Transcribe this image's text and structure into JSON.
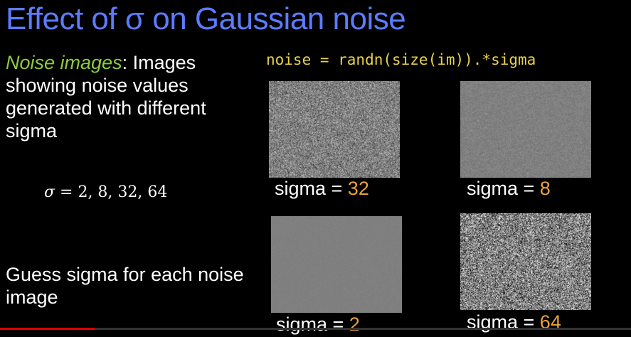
{
  "slide": {
    "title": "Effect of σ on Gaussian noise",
    "desc_highlight": "Noise images",
    "desc_rest": ": Images showing noise values generated with different sigma",
    "formula_symbol": "σ",
    "formula_rest": " = 2, 8, 32, 64",
    "guess": "Guess sigma for each noise image",
    "code": "noise = randn(size(im)).*sigma"
  },
  "panels": [
    {
      "label": "sigma = ",
      "value": "32",
      "sigma": 32
    },
    {
      "label": "sigma = ",
      "value": "8",
      "sigma": 8
    },
    {
      "label": "sigma = ",
      "value": "2",
      "sigma": 2
    },
    {
      "label": "sigma = ",
      "value": "64",
      "sigma": 64
    }
  ],
  "colors": {
    "title": "#5b7cff",
    "highlight": "#8fcc3b",
    "code": "#e8d24a",
    "value": "#e8a33a",
    "progress": "#e00000"
  },
  "video_progress": 0.15
}
